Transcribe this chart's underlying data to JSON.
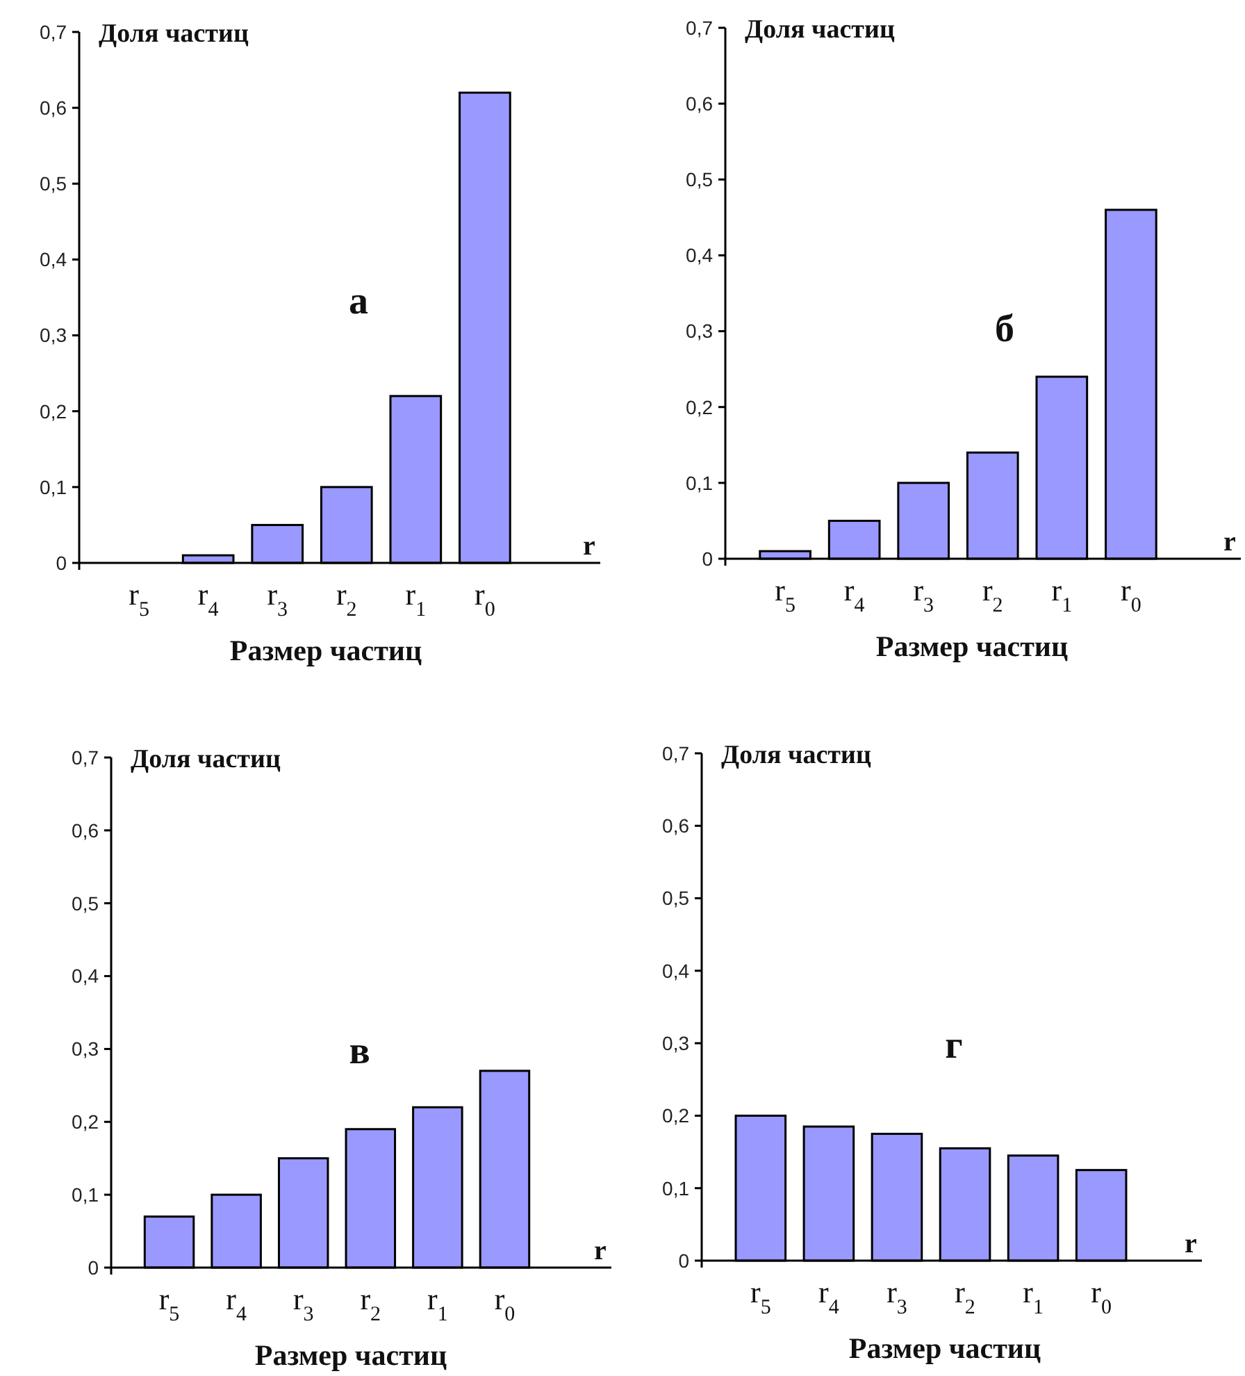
{
  "chart_data": [
    {
      "type": "bar",
      "title": "а",
      "xlabel": "Размер частиц",
      "ylabel": "Доля частиц",
      "annotations": [
        "r"
      ],
      "categories": [
        "r$_{5}$",
        "r$_{4}$",
        "r$_{3}$",
        "r$_{2}$",
        "r$_{1}$",
        "r$_{0}$"
      ],
      "values": [
        0,
        0.01,
        0.05,
        0.1,
        0.22,
        0.62
      ],
      "color": "#9999ff",
      "ylim": [
        0,
        0.7
      ],
      "yticks": [
        {
          "value": 0,
          "label": "0"
        },
        {
          "value": 0.1,
          "label": "0,1"
        },
        {
          "value": 0.2,
          "label": "0,2"
        },
        {
          "value": 0.3,
          "label": "0,3"
        },
        {
          "value": 0.4,
          "label": "0,4"
        },
        {
          "value": 0.5,
          "label": "0,5"
        },
        {
          "value": 0.6,
          "label": "0,6"
        },
        {
          "value": 0.7,
          "label": "0,7"
        }
      ]
    },
    {
      "type": "bar",
      "title": "б",
      "xlabel": "Размер частиц",
      "ylabel": "Доля частиц",
      "annotations": [
        "r"
      ],
      "categories": [
        "r$_{5}$",
        "r$_{4}$",
        "r$_{3}$",
        "r$_{2}$",
        "r$_{1}$",
        "r$_{0}$"
      ],
      "values": [
        0.01,
        0.05,
        0.1,
        0.14,
        0.24,
        0.46
      ],
      "color": "#9999ff",
      "ylim": [
        0,
        0.7
      ],
      "yticks": [
        {
          "value": 0,
          "label": "0"
        },
        {
          "value": 0.1,
          "label": "0,1"
        },
        {
          "value": 0.2,
          "label": "0,2"
        },
        {
          "value": 0.3,
          "label": "0,3"
        },
        {
          "value": 0.4,
          "label": "0,4"
        },
        {
          "value": 0.5,
          "label": "0,5"
        },
        {
          "value": 0.6,
          "label": "0,6"
        },
        {
          "value": 0.7,
          "label": "0,7"
        }
      ]
    },
    {
      "type": "bar",
      "title": "в",
      "xlabel": "Размер частиц",
      "ylabel": "Доля частиц",
      "annotations": [
        "r"
      ],
      "categories": [
        "r$_{5}$",
        "r$_{4}$",
        "r$_{3}$",
        "r$_{2}$",
        "r$_{1}$",
        "r$_{0}$"
      ],
      "values": [
        0.07,
        0.1,
        0.15,
        0.19,
        0.22,
        0.27
      ],
      "color": "#9999ff",
      "ylim": [
        0,
        0.7
      ],
      "yticks": [
        {
          "value": 0,
          "label": "0"
        },
        {
          "value": 0.1,
          "label": "0,1"
        },
        {
          "value": 0.2,
          "label": "0,2"
        },
        {
          "value": 0.3,
          "label": "0,3"
        },
        {
          "value": 0.4,
          "label": "0,4"
        },
        {
          "value": 0.5,
          "label": "0,5"
        },
        {
          "value": 0.6,
          "label": "0,6"
        },
        {
          "value": 0.7,
          "label": "0,7"
        }
      ]
    },
    {
      "type": "bar",
      "title": "г",
      "xlabel": "Размер частиц",
      "ylabel": "Доля частиц",
      "annotations": [
        "r"
      ],
      "categories": [
        "r$_{5}$",
        "r$_{4}$",
        "r$_{3}$",
        "r$_{2}$",
        "r$_{1}$",
        "r$_{0}$"
      ],
      "values": [
        0.2,
        0.185,
        0.175,
        0.155,
        0.145,
        0.125
      ],
      "color": "#9999ff",
      "ylim": [
        0,
        0.7
      ],
      "yticks": [
        {
          "value": 0,
          "label": "0"
        },
        {
          "value": 0.1,
          "label": "0,1"
        },
        {
          "value": 0.2,
          "label": "0,2"
        },
        {
          "value": 0.3,
          "label": "0,3"
        },
        {
          "value": 0.4,
          "label": "0,4"
        },
        {
          "value": 0.5,
          "label": "0,5"
        },
        {
          "value": 0.6,
          "label": "0,6"
        },
        {
          "value": 0.7,
          "label": "0,7"
        }
      ]
    }
  ]
}
